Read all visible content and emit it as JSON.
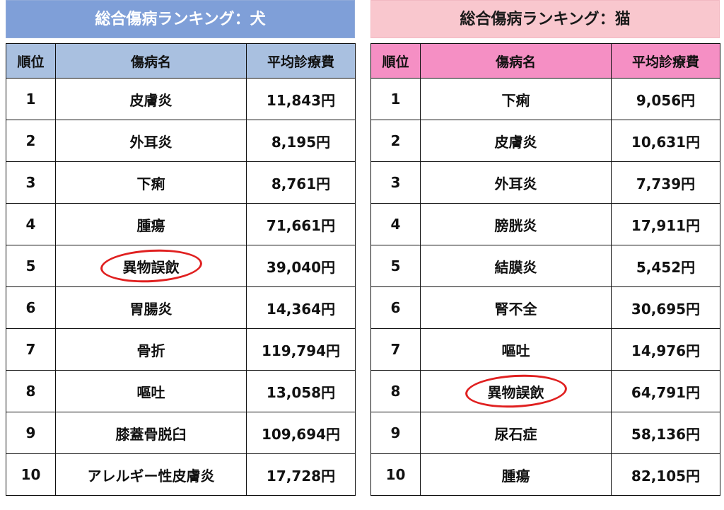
{
  "dog": {
    "title": "総合傷病ランキング：犬",
    "headers": {
      "rank": "順位",
      "name": "傷病名",
      "cost": "平均診療費"
    },
    "rows": [
      {
        "rank": "1",
        "name": "皮膚炎",
        "cost": "11,843円",
        "highlight": false
      },
      {
        "rank": "2",
        "name": "外耳炎",
        "cost": "8,195円",
        "highlight": false
      },
      {
        "rank": "3",
        "name": "下痢",
        "cost": "8,761円",
        "highlight": false
      },
      {
        "rank": "4",
        "name": "腫瘍",
        "cost": "71,661円",
        "highlight": false
      },
      {
        "rank": "5",
        "name": "異物誤飲",
        "cost": "39,040円",
        "highlight": true
      },
      {
        "rank": "6",
        "name": "胃腸炎",
        "cost": "14,364円",
        "highlight": false
      },
      {
        "rank": "7",
        "name": "骨折",
        "cost": "119,794円",
        "highlight": false
      },
      {
        "rank": "8",
        "name": "嘔吐",
        "cost": "13,058円",
        "highlight": false
      },
      {
        "rank": "9",
        "name": "膝蓋骨脱臼",
        "cost": "109,694円",
        "highlight": false
      },
      {
        "rank": "10",
        "name": "アレルギー性皮膚炎",
        "cost": "17,728円",
        "highlight": false
      }
    ]
  },
  "cat": {
    "title": "総合傷病ランキング：猫",
    "headers": {
      "rank": "順位",
      "name": "傷病名",
      "cost": "平均診療費"
    },
    "rows": [
      {
        "rank": "1",
        "name": "下痢",
        "cost": "9,056円",
        "highlight": false
      },
      {
        "rank": "2",
        "name": "皮膚炎",
        "cost": "10,631円",
        "highlight": false
      },
      {
        "rank": "3",
        "name": "外耳炎",
        "cost": "7,739円",
        "highlight": false
      },
      {
        "rank": "4",
        "name": "膀胱炎",
        "cost": "17,911円",
        "highlight": false
      },
      {
        "rank": "5",
        "name": "結膜炎",
        "cost": "5,452円",
        "highlight": false
      },
      {
        "rank": "6",
        "name": "腎不全",
        "cost": "30,695円",
        "highlight": false
      },
      {
        "rank": "7",
        "name": "嘔吐",
        "cost": "14,976円",
        "highlight": false
      },
      {
        "rank": "8",
        "name": "異物誤飲",
        "cost": "64,791円",
        "highlight": true
      },
      {
        "rank": "9",
        "name": "尿石症",
        "cost": "58,136円",
        "highlight": false
      },
      {
        "rank": "10",
        "name": "腫瘍",
        "cost": "82,105円",
        "highlight": false
      }
    ]
  },
  "colors": {
    "dog_banner": "#7f9fd8",
    "dog_header": "#a9c0e0",
    "cat_banner": "#f9c7ce",
    "cat_header": "#f58fc4",
    "highlight_circle": "#e02020"
  }
}
